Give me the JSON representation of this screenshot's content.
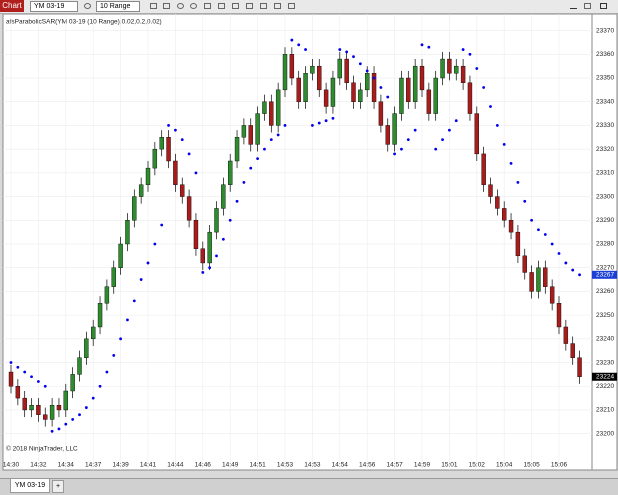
{
  "toolbar": {
    "label": "Chart",
    "instrument": "YM 03-19",
    "interval": "10 Range"
  },
  "chart_data": {
    "type": "candlestick",
    "indicator_title": "afsParabolicSAR(YM 03-19 (10 Range),0.02,0.2,0.02)",
    "copyright": "© 2018 NinjaTrader, LLC",
    "categories": [
      "14:30",
      null,
      null,
      null,
      "14:32",
      null,
      null,
      null,
      "14:34",
      null,
      null,
      null,
      "14:37",
      null,
      null,
      null,
      "14:39",
      null,
      null,
      null,
      "14:41",
      null,
      null,
      null,
      "14:44",
      null,
      null,
      null,
      "14:46",
      null,
      null,
      null,
      "14:49",
      null,
      null,
      null,
      "14:51",
      null,
      null,
      null,
      "14:53",
      null,
      null,
      null,
      "14:53",
      null,
      null,
      null,
      "14:54",
      null,
      null,
      null,
      "14:56",
      null,
      null,
      null,
      "14:57",
      null,
      null,
      null,
      "14:59",
      null,
      null,
      null,
      "15:01",
      null,
      null,
      null,
      "15:02",
      null,
      null,
      null,
      "15:04",
      null,
      null,
      null,
      "15:05",
      null,
      null,
      null,
      "15:06",
      null,
      null,
      null
    ],
    "open": [
      23226,
      23220,
      23215,
      23210,
      23212,
      23208,
      23206,
      23212,
      23210,
      23218,
      23225,
      23232,
      23240,
      23245,
      23255,
      23262,
      23270,
      23280,
      23290,
      23300,
      23305,
      23312,
      23320,
      23325,
      23315,
      23305,
      23300,
      23290,
      23278,
      23272,
      23285,
      23295,
      23305,
      23315,
      23325,
      23330,
      23322,
      23335,
      23340,
      23330,
      23345,
      23360,
      23350,
      23340,
      23352,
      23355,
      23345,
      23338,
      23350,
      23358,
      23348,
      23340,
      23345,
      23352,
      23340,
      23330,
      23322,
      23335,
      23350,
      23340,
      23355,
      23345,
      23335,
      23350,
      23358,
      23352,
      23355,
      23348,
      23335,
      23318,
      23305,
      23300,
      23295,
      23290,
      23285,
      23275,
      23268,
      23260,
      23270,
      23262,
      23255,
      23245,
      23238,
      23232
    ],
    "high": [
      23229,
      23223,
      23218,
      23215,
      23215,
      23211,
      23215,
      23215,
      23221,
      23228,
      23235,
      23243,
      23248,
      23258,
      23265,
      23273,
      23283,
      23293,
      23303,
      23308,
      23315,
      23323,
      23328,
      23328,
      23318,
      23308,
      23303,
      23293,
      23281,
      23288,
      23298,
      23308,
      23318,
      23328,
      23333,
      23333,
      23338,
      23343,
      23343,
      23348,
      23363,
      23363,
      23353,
      23355,
      23358,
      23358,
      23348,
      23353,
      23361,
      23361,
      23351,
      23348,
      23355,
      23355,
      23343,
      23333,
      23338,
      23353,
      23353,
      23358,
      23358,
      23348,
      23353,
      23361,
      23361,
      23358,
      23358,
      23351,
      23338,
      23321,
      23308,
      23303,
      23298,
      23293,
      23288,
      23278,
      23271,
      23273,
      23273,
      23265,
      23258,
      23248,
      23241,
      23235
    ],
    "low": [
      23217,
      23212,
      23207,
      23207,
      23205,
      23203,
      23203,
      23207,
      23207,
      23215,
      23222,
      23229,
      23237,
      23242,
      23252,
      23259,
      23267,
      23277,
      23287,
      23297,
      23302,
      23309,
      23317,
      23312,
      23302,
      23297,
      23287,
      23275,
      23269,
      23269,
      23282,
      23292,
      23302,
      23312,
      23322,
      23319,
      23319,
      23332,
      23327,
      23327,
      23342,
      23347,
      23337,
      23337,
      23349,
      23342,
      23335,
      23335,
      23347,
      23345,
      23337,
      23337,
      23342,
      23337,
      23327,
      23319,
      23319,
      23332,
      23337,
      23337,
      23342,
      23332,
      23332,
      23347,
      23349,
      23349,
      23345,
      23332,
      23315,
      23302,
      23297,
      23292,
      23287,
      23282,
      23272,
      23265,
      23257,
      23257,
      23259,
      23252,
      23242,
      23235,
      23229,
      23221
    ],
    "close": [
      23220,
      23215,
      23210,
      23212,
      23208,
      23206,
      23212,
      23210,
      23218,
      23225,
      23232,
      23240,
      23245,
      23255,
      23262,
      23270,
      23280,
      23290,
      23300,
      23305,
      23312,
      23320,
      23325,
      23315,
      23305,
      23300,
      23290,
      23278,
      23272,
      23285,
      23295,
      23305,
      23315,
      23325,
      23330,
      23322,
      23335,
      23340,
      23330,
      23345,
      23360,
      23350,
      23340,
      23352,
      23355,
      23345,
      23338,
      23350,
      23358,
      23348,
      23340,
      23345,
      23352,
      23340,
      23330,
      23322,
      23335,
      23350,
      23340,
      23355,
      23345,
      23335,
      23350,
      23358,
      23352,
      23355,
      23348,
      23335,
      23318,
      23305,
      23300,
      23295,
      23290,
      23285,
      23275,
      23268,
      23260,
      23270,
      23262,
      23255,
      23245,
      23238,
      23232,
      23224
    ],
    "up_color": "#2e8b2e",
    "down_color": "#a81c1c",
    "sar": {
      "color": "#0000ee",
      "values": [
        23230,
        23228,
        23226,
        23224,
        23222,
        23220,
        23201,
        23202,
        23204,
        23206,
        23208,
        23211,
        23215,
        23220,
        23226,
        23233,
        23240,
        23248,
        23256,
        23265,
        23272,
        23280,
        23288,
        23330,
        23328,
        23324,
        23318,
        23310,
        23268,
        23270,
        23275,
        23282,
        23290,
        23298,
        23306,
        23312,
        23316,
        23320,
        23324,
        23326,
        23330,
        23366,
        23364,
        23362,
        23330,
        23331,
        23332,
        23333,
        23362,
        23361,
        23359,
        23356,
        23353,
        23350,
        23346,
        23342,
        23318,
        23320,
        23324,
        23328,
        23364,
        23363,
        23320,
        23324,
        23328,
        23332,
        23362,
        23360,
        23354,
        23346,
        23338,
        23330,
        23322,
        23314,
        23306,
        23298,
        23290,
        23286,
        23284,
        23280,
        23276,
        23272,
        23269,
        23267
      ]
    },
    "price_markers": [
      23267,
      23224
    ],
    "price_marker_colors": [
      "#1a3fd6",
      "#000000"
    ],
    "ylim": [
      23191,
      23377
    ],
    "yticks": [
      23200,
      23210,
      23220,
      23230,
      23240,
      23250,
      23260,
      23270,
      23280,
      23290,
      23300,
      23310,
      23320,
      23330,
      23340,
      23350,
      23360,
      23370
    ],
    "grid": true
  },
  "tabs": [
    "YM 03-19",
    "+"
  ]
}
